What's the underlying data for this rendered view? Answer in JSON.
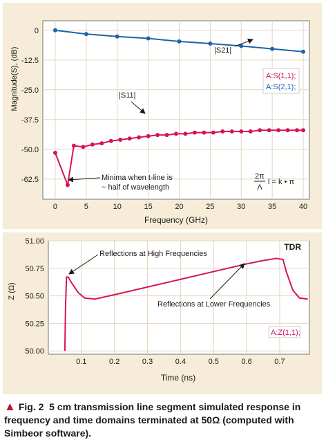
{
  "chart_data": [
    {
      "type": "line",
      "xlabel": "Frequency (GHz)",
      "ylabel": "Magnitude(S), (dB)",
      "xlim": [
        -2,
        41
      ],
      "ylim": [
        -71,
        4
      ],
      "xticks": [
        0,
        5,
        10,
        15,
        20,
        25,
        30,
        35,
        40
      ],
      "yticks": [
        0,
        -12.5,
        -25.0,
        -37.5,
        -50.0,
        -62.5
      ],
      "xtick_labels": [
        "0",
        "5",
        "10",
        "15",
        "20",
        "25",
        "30",
        "35",
        "40"
      ],
      "ytick_labels": [
        "0",
        "-12.5",
        "-25.0",
        "-37.5",
        "-50.0",
        "-62.5"
      ],
      "grid": true,
      "legend_entries": [
        "A:S(1,1);",
        "A:S(2,1);"
      ],
      "legend_position": "right",
      "series": [
        {
          "name": "A:S(2,1);",
          "color": "#1e64a8",
          "x": [
            0,
            5,
            10,
            15,
            20,
            25,
            30,
            35,
            40
          ],
          "y": [
            0,
            -1.6,
            -2.6,
            -3.4,
            -4.7,
            -5.6,
            -6.6,
            -7.8,
            -9.0
          ]
        },
        {
          "name": "A:S(1,1);",
          "color": "#d4145a",
          "x": [
            0,
            2,
            3,
            4.5,
            6,
            7.5,
            9,
            10.5,
            12,
            13.5,
            15,
            16.5,
            18,
            19.5,
            21,
            22.5,
            24,
            25.5,
            27,
            28.5,
            30,
            31.5,
            33,
            34.5,
            36,
            37.5,
            39,
            40
          ],
          "y": [
            -51.5,
            -65.0,
            -48.5,
            -49.0,
            -48.0,
            -47.5,
            -46.5,
            -46.0,
            -45.5,
            -45.0,
            -44.5,
            -44.0,
            -44.0,
            -43.5,
            -43.5,
            -43.0,
            -43.0,
            -43.0,
            -42.5,
            -42.5,
            -42.5,
            -42.5,
            -42.0,
            -42.0,
            -42.0,
            -42.0,
            -42.0,
            -42.0
          ]
        }
      ],
      "annotations": {
        "s21": "|S21|",
        "s11": "|S11|",
        "minima_line1": "Minima when t-line is",
        "minima_line2": "~ half of wavelength",
        "formula_num": "2π",
        "formula_den": "Λ",
        "formula_rest": "l = k • π"
      }
    },
    {
      "type": "line",
      "title": "TDR",
      "xlabel": "Time (ns)",
      "ylabel": "Z (Ω)",
      "xlim": [
        0,
        0.79
      ],
      "ylim": [
        49.97,
        51.0
      ],
      "xticks": [
        0.1,
        0.2,
        0.3,
        0.4,
        0.5,
        0.6,
        0.7
      ],
      "yticks": [
        50.0,
        50.25,
        50.5,
        50.75,
        51.0
      ],
      "xtick_labels": [
        "0.1",
        "0.2",
        "0.3",
        "0.4",
        "0.5",
        "0.6",
        "0.7"
      ],
      "ytick_labels": [
        "50.00",
        "50.25",
        "50.50",
        "50.75",
        "51.00"
      ],
      "grid": true,
      "legend_entries": [
        "A:Z(1,1);"
      ],
      "legend_position": "bottom-right",
      "series": [
        {
          "name": "A:Z(1,1);",
          "color": "#d4145a",
          "x": [
            0.05,
            0.052,
            0.055,
            0.06,
            0.07,
            0.09,
            0.11,
            0.14,
            0.2,
            0.3,
            0.4,
            0.5,
            0.6,
            0.65,
            0.69,
            0.71,
            0.72,
            0.74,
            0.76,
            0.785
          ],
          "y": [
            50.0,
            50.4,
            50.67,
            50.67,
            50.62,
            50.53,
            50.48,
            50.47,
            50.51,
            50.58,
            50.65,
            50.72,
            50.79,
            50.82,
            50.84,
            50.83,
            50.72,
            50.55,
            50.48,
            50.47
          ]
        }
      ],
      "annotations": {
        "high": "Reflections at High Frequencies",
        "low": "Reflections at Lower Frequencies"
      }
    }
  ],
  "caption": {
    "figure_label": "Fig. 2",
    "text": "5 cm transmission line segment simulated response in frequency and time domains terminated at 50Ω (computed with Simbeor software)."
  },
  "colors": {
    "background": "#f6ecd7",
    "s11": "#d4145a",
    "s21": "#1e64a8",
    "grid": "#e2d6bd"
  }
}
